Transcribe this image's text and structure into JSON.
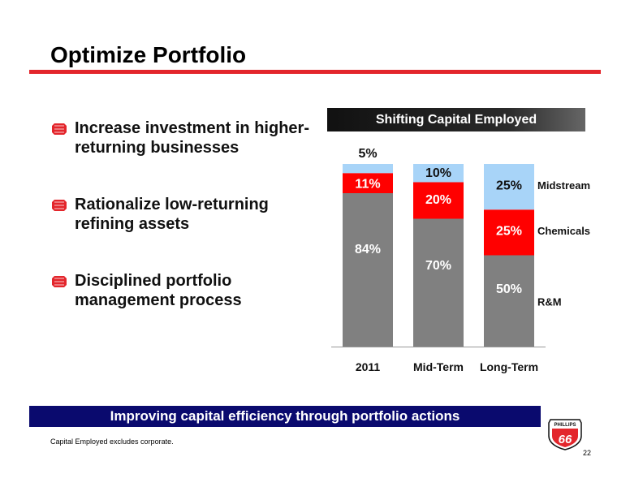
{
  "title": "Optimize Portfolio",
  "bullets": [
    "Increase investment in higher-returning businesses",
    "Rationalize low-returning refining assets",
    "Disciplined portfolio management process"
  ],
  "chart_header": "Shifting Capital Employed",
  "banner": "Improving capital efficiency through portfolio actions",
  "footnote": "Capital Employed excludes corporate.",
  "page_number": "22",
  "logo_text": "PHILLIPS 66",
  "colors": {
    "title_rule": "#e3262c",
    "rm": "#808080",
    "chemicals": "#ff0000",
    "midstream": "#a8d4f8",
    "banner": "#0a0a6e"
  },
  "chart_data": {
    "type": "bar",
    "stacked": true,
    "categories": [
      "2011",
      "Mid-Term",
      "Long-Term"
    ],
    "series": [
      {
        "name": "R&M",
        "values": [
          84,
          70,
          50
        ],
        "labels": [
          "84%",
          "70%",
          "50%"
        ],
        "color": "#808080"
      },
      {
        "name": "Chemicals",
        "values": [
          11,
          20,
          25
        ],
        "labels": [
          "11%",
          "20%",
          "25%"
        ],
        "color": "#ff0000"
      },
      {
        "name": "Midstream",
        "values": [
          5,
          10,
          25
        ],
        "labels": [
          "5%",
          "10%",
          "25%"
        ],
        "color": "#a8d4f8"
      }
    ],
    "ylim": [
      0,
      100
    ],
    "legend": "right"
  }
}
